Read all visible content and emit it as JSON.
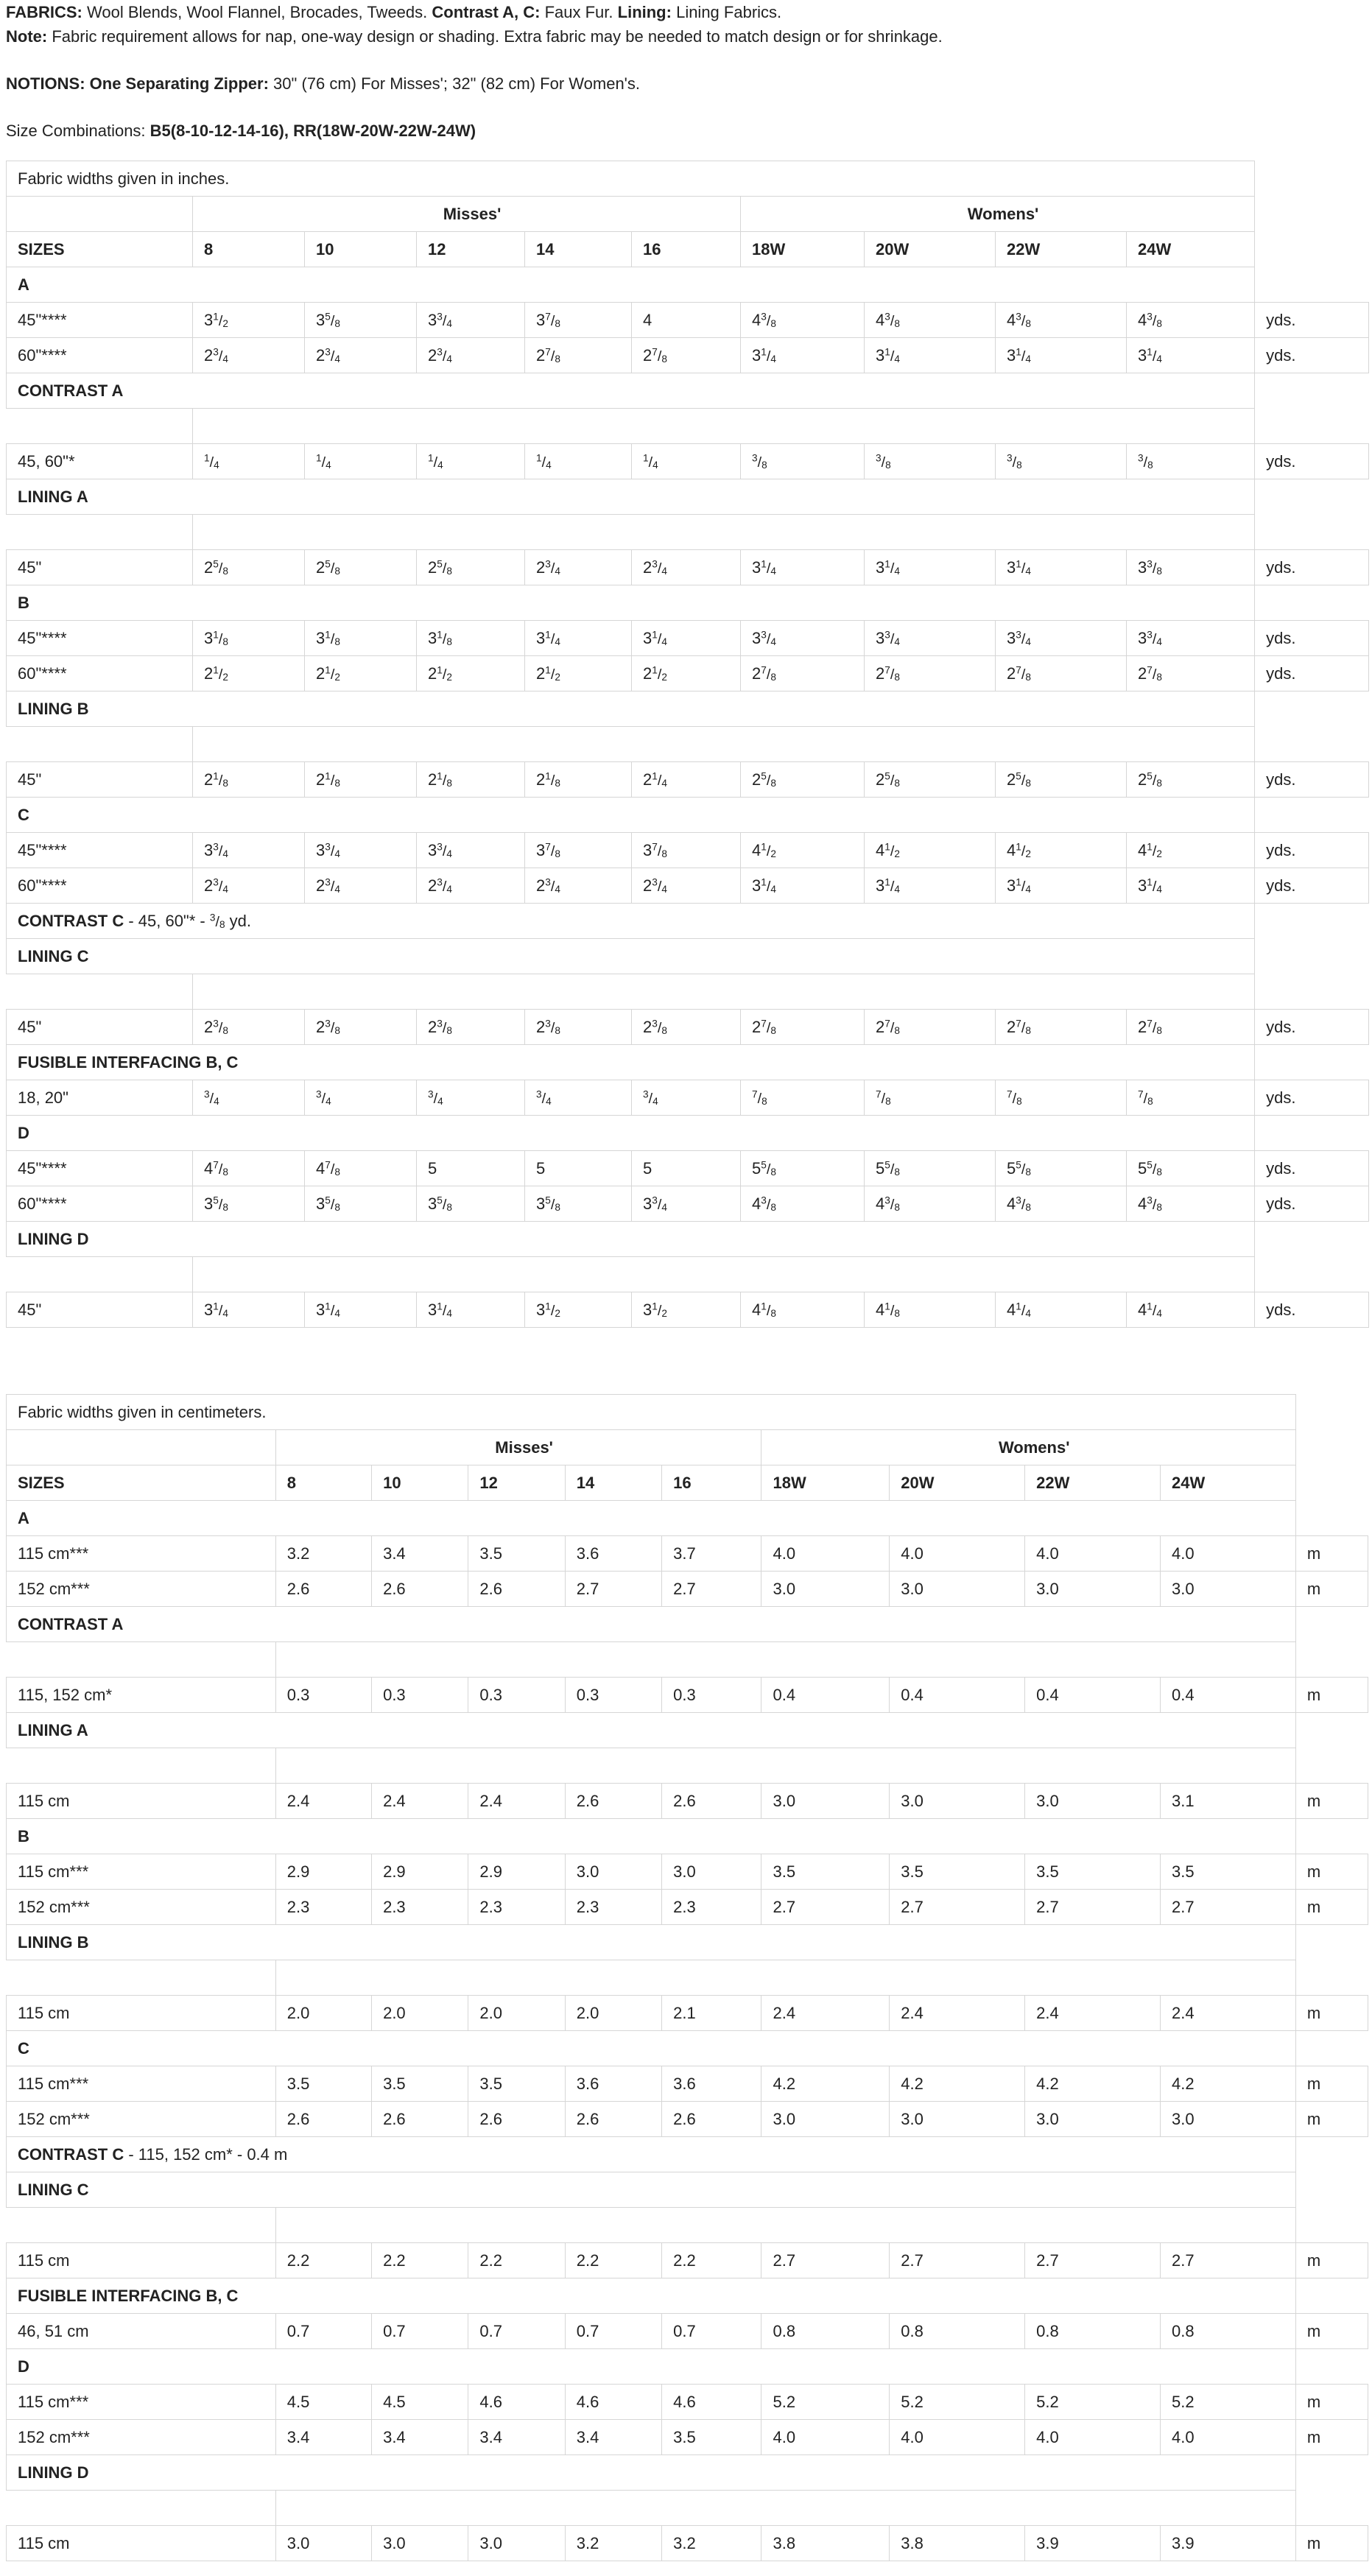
{
  "intro": {
    "fabrics_label": "FABRICS:",
    "fabrics_text": "Wool Blends, Wool Flannel, Brocades, Tweeds.",
    "contrast_label": "Contrast A, C:",
    "contrast_text": "Faux Fur.",
    "lining_label": "Lining:",
    "lining_text": "Lining Fabrics.",
    "note_label": "Note:",
    "note_text": "Fabric requirement allows for nap, one-way design or shading. Extra fabric may be needed to match design or for shrinkage.",
    "notions_label": "NOTIONS: One Separating Zipper:",
    "notions_text": "30\" (76 cm) For Misses'; 32\" (82 cm) For Women's.",
    "sizes_label": "Size Combinations:",
    "sizes_text": "B5(8-10-12-14-16), RR(18W-20W-22W-24W)"
  },
  "tables": [
    {
      "caption": "Fabric widths given in inches.",
      "group_misses": "Misses'",
      "group_womens": "Womens'",
      "sizes_label": "SIZES",
      "sizes": [
        "8",
        "10",
        "12",
        "14",
        "16",
        "18W",
        "20W",
        "22W",
        "24W"
      ],
      "rows": [
        {
          "kind": "section",
          "label": "A"
        },
        {
          "kind": "data",
          "label": "45\"****",
          "values": [
            "3 1/2",
            "3 5/8",
            "3 3/4",
            "3 7/8",
            "4",
            "4 3/8",
            "4 3/8",
            "4 3/8",
            "4 3/8"
          ],
          "unit": "yds."
        },
        {
          "kind": "data",
          "label": "60\"****",
          "values": [
            "2 3/4",
            "2 3/4",
            "2 3/4",
            "2 7/8",
            "2 7/8",
            "3 1/4",
            "3 1/4",
            "3 1/4",
            "3 1/4"
          ],
          "unit": "yds."
        },
        {
          "kind": "section",
          "label": "CONTRAST A"
        },
        {
          "kind": "spacer"
        },
        {
          "kind": "data",
          "label": "45, 60\"*",
          "values": [
            "1/4",
            "1/4",
            "1/4",
            "1/4",
            "1/4",
            "3/8",
            "3/8",
            "3/8",
            "3/8"
          ],
          "unit": "yds."
        },
        {
          "kind": "section",
          "label": "LINING A"
        },
        {
          "kind": "spacer"
        },
        {
          "kind": "data",
          "label": "45\"",
          "values": [
            "2 5/8",
            "2 5/8",
            "2 5/8",
            "2 3/4",
            "2 3/4",
            "3 1/4",
            "3 1/4",
            "3 1/4",
            "3 3/8"
          ],
          "unit": "yds."
        },
        {
          "kind": "section",
          "label": "B"
        },
        {
          "kind": "data",
          "label": "45\"****",
          "values": [
            "3 1/8",
            "3 1/8",
            "3 1/8",
            "3 1/4",
            "3 1/4",
            "3 3/4",
            "3 3/4",
            "3 3/4",
            "3 3/4"
          ],
          "unit": "yds."
        },
        {
          "kind": "data",
          "label": "60\"****",
          "values": [
            "2 1/2",
            "2 1/2",
            "2 1/2",
            "2 1/2",
            "2 1/2",
            "2 7/8",
            "2 7/8",
            "2 7/8",
            "2 7/8"
          ],
          "unit": "yds."
        },
        {
          "kind": "section",
          "label": "LINING B"
        },
        {
          "kind": "spacer"
        },
        {
          "kind": "data",
          "label": "45\"",
          "values": [
            "2 1/8",
            "2 1/8",
            "2 1/8",
            "2 1/8",
            "2 1/4",
            "2 5/8",
            "2 5/8",
            "2 5/8",
            "2 5/8"
          ],
          "unit": "yds."
        },
        {
          "kind": "section",
          "label": "C"
        },
        {
          "kind": "data",
          "label": "45\"****",
          "values": [
            "3 3/4",
            "3 3/4",
            "3 3/4",
            "3 7/8",
            "3 7/8",
            "4 1/2",
            "4 1/2",
            "4 1/2",
            "4 1/2"
          ],
          "unit": "yds."
        },
        {
          "kind": "data",
          "label": "60\"****",
          "values": [
            "2 3/4",
            "2 3/4",
            "2 3/4",
            "2 3/4",
            "2 3/4",
            "3 1/4",
            "3 1/4",
            "3 1/4",
            "3 1/4"
          ],
          "unit": "yds."
        },
        {
          "kind": "note",
          "label": "CONTRAST C",
          "prefix": " - 45, 60\"* - ",
          "frac": "3/8",
          "suffix": " yd."
        },
        {
          "kind": "section",
          "label": "LINING C"
        },
        {
          "kind": "spacer"
        },
        {
          "kind": "data",
          "label": "45\"",
          "values": [
            "2 3/8",
            "2 3/8",
            "2 3/8",
            "2 3/8",
            "2 3/8",
            "2 7/8",
            "2 7/8",
            "2 7/8",
            "2 7/8"
          ],
          "unit": "yds."
        },
        {
          "kind": "section",
          "label": "FUSIBLE INTERFACING B, C"
        },
        {
          "kind": "data",
          "label": "18, 20\"",
          "values": [
            "3/4",
            "3/4",
            "3/4",
            "3/4",
            "3/4",
            "7/8",
            "7/8",
            "7/8",
            "7/8"
          ],
          "unit": "yds."
        },
        {
          "kind": "section",
          "label": "D"
        },
        {
          "kind": "data",
          "label": "45\"****",
          "values": [
            "4 7/8",
            "4 7/8",
            "5",
            "5",
            "5",
            "5 5/8",
            "5 5/8",
            "5 5/8",
            "5 5/8"
          ],
          "unit": "yds."
        },
        {
          "kind": "data",
          "label": "60\"****",
          "values": [
            "3 5/8",
            "3 5/8",
            "3 5/8",
            "3 5/8",
            "3 3/4",
            "4 3/8",
            "4 3/8",
            "4 3/8",
            "4 3/8"
          ],
          "unit": "yds."
        },
        {
          "kind": "section",
          "label": "LINING D"
        },
        {
          "kind": "spacer"
        },
        {
          "kind": "data",
          "label": "45\"",
          "values": [
            "3 1/4",
            "3 1/4",
            "3 1/4",
            "3 1/2",
            "3 1/2",
            "4 1/8",
            "4 1/8",
            "4 1/4",
            "4 1/4"
          ],
          "unit": "yds."
        }
      ]
    },
    {
      "caption": "Fabric widths given in centimeters.",
      "group_misses": "Misses'",
      "group_womens": "Womens'",
      "sizes_label": "SIZES",
      "sizes": [
        "8",
        "10",
        "12",
        "14",
        "16",
        "18W",
        "20W",
        "22W",
        "24W"
      ],
      "rows": [
        {
          "kind": "section",
          "label": "A"
        },
        {
          "kind": "data",
          "label": "115 cm***",
          "values": [
            "3.2",
            "3.4",
            "3.5",
            "3.6",
            "3.7",
            "4.0",
            "4.0",
            "4.0",
            "4.0"
          ],
          "unit": "m"
        },
        {
          "kind": "data",
          "label": "152 cm***",
          "values": [
            "2.6",
            "2.6",
            "2.6",
            "2.7",
            "2.7",
            "3.0",
            "3.0",
            "3.0",
            "3.0"
          ],
          "unit": "m"
        },
        {
          "kind": "section",
          "label": "CONTRAST A"
        },
        {
          "kind": "spacer"
        },
        {
          "kind": "data",
          "label": "115, 152 cm*",
          "values": [
            "0.3",
            "0.3",
            "0.3",
            "0.3",
            "0.3",
            "0.4",
            "0.4",
            "0.4",
            "0.4"
          ],
          "unit": "m"
        },
        {
          "kind": "section",
          "label": "LINING A"
        },
        {
          "kind": "spacer"
        },
        {
          "kind": "data",
          "label": "115 cm",
          "values": [
            "2.4",
            "2.4",
            "2.4",
            "2.6",
            "2.6",
            "3.0",
            "3.0",
            "3.0",
            "3.1"
          ],
          "unit": "m"
        },
        {
          "kind": "section",
          "label": "B"
        },
        {
          "kind": "data",
          "label": "115 cm***",
          "values": [
            "2.9",
            "2.9",
            "2.9",
            "3.0",
            "3.0",
            "3.5",
            "3.5",
            "3.5",
            "3.5"
          ],
          "unit": "m"
        },
        {
          "kind": "data",
          "label": "152 cm***",
          "values": [
            "2.3",
            "2.3",
            "2.3",
            "2.3",
            "2.3",
            "2.7",
            "2.7",
            "2.7",
            "2.7"
          ],
          "unit": "m"
        },
        {
          "kind": "section",
          "label": "LINING B"
        },
        {
          "kind": "spacer"
        },
        {
          "kind": "data",
          "label": "115 cm",
          "values": [
            "2.0",
            "2.0",
            "2.0",
            "2.0",
            "2.1",
            "2.4",
            "2.4",
            "2.4",
            "2.4"
          ],
          "unit": "m"
        },
        {
          "kind": "section",
          "label": "C"
        },
        {
          "kind": "data",
          "label": "115 cm***",
          "values": [
            "3.5",
            "3.5",
            "3.5",
            "3.6",
            "3.6",
            "4.2",
            "4.2",
            "4.2",
            "4.2"
          ],
          "unit": "m"
        },
        {
          "kind": "data",
          "label": "152 cm***",
          "values": [
            "2.6",
            "2.6",
            "2.6",
            "2.6",
            "2.6",
            "3.0",
            "3.0",
            "3.0",
            "3.0"
          ],
          "unit": "m"
        },
        {
          "kind": "note",
          "label": "CONTRAST C",
          "prefix": " - 115, 152 cm* - 0.4 m",
          "frac": "",
          "suffix": ""
        },
        {
          "kind": "section",
          "label": "LINING C"
        },
        {
          "kind": "spacer"
        },
        {
          "kind": "data",
          "label": "115 cm",
          "values": [
            "2.2",
            "2.2",
            "2.2",
            "2.2",
            "2.2",
            "2.7",
            "2.7",
            "2.7",
            "2.7"
          ],
          "unit": "m"
        },
        {
          "kind": "section",
          "label": "FUSIBLE INTERFACING B, C"
        },
        {
          "kind": "data",
          "label": "46, 51 cm",
          "values": [
            "0.7",
            "0.7",
            "0.7",
            "0.7",
            "0.7",
            "0.8",
            "0.8",
            "0.8",
            "0.8"
          ],
          "unit": "m"
        },
        {
          "kind": "section",
          "label": "D"
        },
        {
          "kind": "data",
          "label": "115 cm***",
          "values": [
            "4.5",
            "4.5",
            "4.6",
            "4.6",
            "4.6",
            "5.2",
            "5.2",
            "5.2",
            "5.2"
          ],
          "unit": "m"
        },
        {
          "kind": "data",
          "label": "152 cm***",
          "values": [
            "3.4",
            "3.4",
            "3.4",
            "3.4",
            "3.5",
            "4.0",
            "4.0",
            "4.0",
            "4.0"
          ],
          "unit": "m"
        },
        {
          "kind": "section",
          "label": "LINING D"
        },
        {
          "kind": "spacer"
        },
        {
          "kind": "data",
          "label": "115 cm",
          "values": [
            "3.0",
            "3.0",
            "3.0",
            "3.2",
            "3.2",
            "3.8",
            "3.8",
            "3.9",
            "3.9"
          ],
          "unit": "m"
        }
      ]
    }
  ]
}
